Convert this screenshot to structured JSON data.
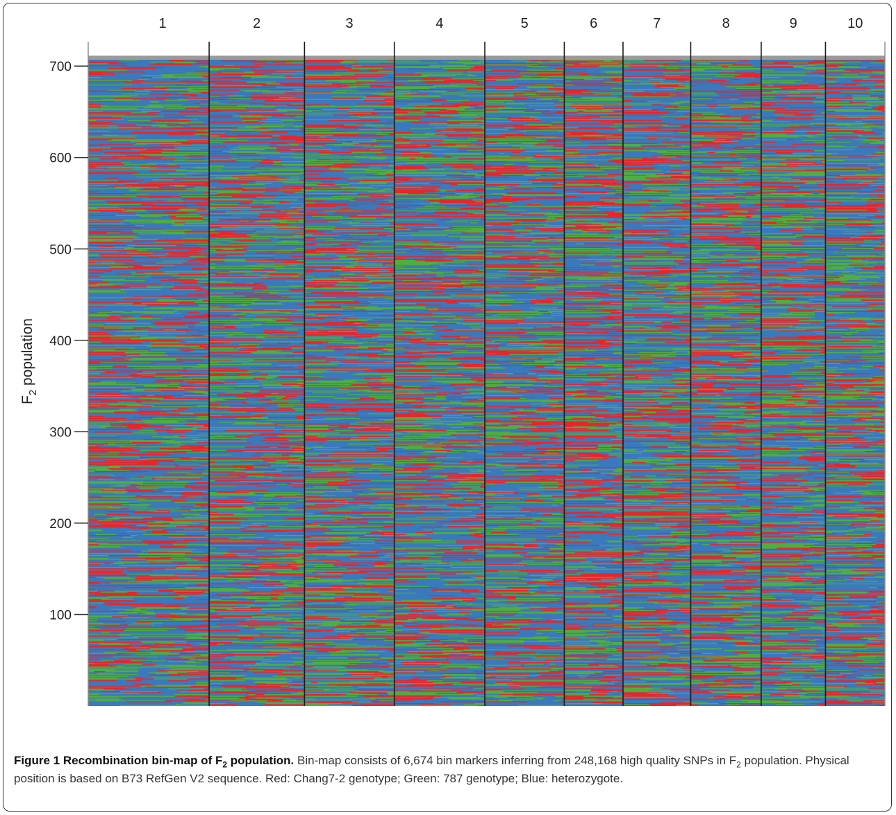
{
  "chart_data": {
    "type": "heatmap",
    "chromosomes": [
      "1",
      "2",
      "3",
      "4",
      "5",
      "6",
      "7",
      "8",
      "9",
      "10"
    ],
    "chromosome_widths": [
      175,
      138,
      130,
      131,
      115,
      85,
      98,
      102,
      93,
      86
    ],
    "yticks": [
      100,
      200,
      300,
      400,
      500,
      600,
      700
    ],
    "ylim": [
      0,
      710
    ],
    "ylabel_prefix": "F",
    "ylabel_sub": "2",
    "ylabel_suffix": " population",
    "categories": [
      "Chang7-2 genotype",
      "787 genotype",
      "heterozygote"
    ],
    "colors": {
      "red": "#e8262a",
      "green": "#4fae3e",
      "blue": "#3a79bd",
      "axis": "#333333",
      "divider": "#1a1a1a"
    },
    "category_frequencies": [
      0.25,
      0.25,
      0.5
    ],
    "bin_markers": 6674,
    "snps": 248168
  },
  "caption": {
    "title_prefix": "Figure 1 Recombination bin-map of F",
    "title_sub": "2",
    "title_suffix": " population.",
    "body_1": " Bin-map consists of 6,674 bin markers inferring from 248,168 high quality SNPs in F",
    "body_sub": "2",
    "body_2": " population. Physical position is based on B73 RefGen V2 sequence. Red: Chang7-2 genotype; Green: 787 genotype; Blue: heterozygote."
  }
}
